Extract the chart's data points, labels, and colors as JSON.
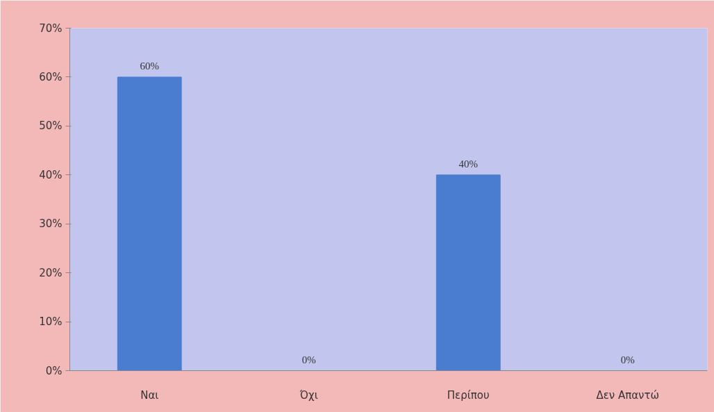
{
  "chart_data": {
    "type": "bar",
    "categories": [
      "Ναι",
      "Όχι",
      "Περίπου",
      "Δεν Απαντώ"
    ],
    "values": [
      60,
      0,
      40,
      0
    ],
    "value_labels": [
      "60%",
      "0%",
      "40%",
      "0%"
    ],
    "color": "#4a7ccf",
    "ylim": [
      0,
      70
    ],
    "yticks": [
      {
        "value": 0,
        "label": "0%"
      },
      {
        "value": 10,
        "label": "10%"
      },
      {
        "value": 20,
        "label": "20%"
      },
      {
        "value": 30,
        "label": "30%"
      },
      {
        "value": 40,
        "label": "40%"
      },
      {
        "value": 50,
        "label": "50%"
      },
      {
        "value": 60,
        "label": "60%"
      },
      {
        "value": 70,
        "label": "70%"
      }
    ],
    "grid": false
  }
}
